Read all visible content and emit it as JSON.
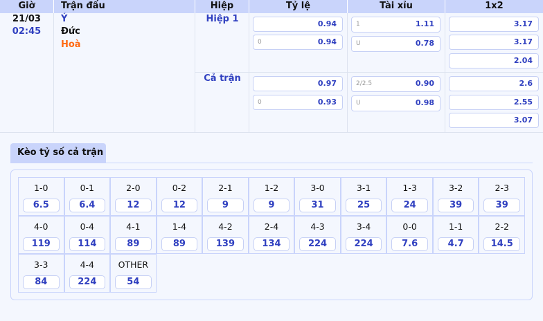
{
  "header": {
    "time": "Giờ",
    "match": "Trận đấu",
    "half": "Hiệp",
    "handicap": "Tỷ lệ",
    "overunder": "Tài xỉu",
    "onextwo": "1x2"
  },
  "match": {
    "date": "21/03",
    "time": "02:45",
    "home": "Ý",
    "away": "Đức",
    "draw": "Hoà"
  },
  "periods": [
    {
      "name": "Hiệp 1",
      "handicap": [
        {
          "line": "",
          "odd": "0.94"
        },
        {
          "line": "0",
          "odd": "0.94"
        }
      ],
      "overunder": [
        {
          "line": "1",
          "odd": "1.11"
        },
        {
          "line": "U",
          "odd": "0.78"
        }
      ],
      "onextwo": [
        "3.17",
        "3.17",
        "2.04"
      ]
    },
    {
      "name": "Cả trận",
      "handicap": [
        {
          "line": "",
          "odd": "0.97"
        },
        {
          "line": "0",
          "odd": "0.93"
        }
      ],
      "overunder": [
        {
          "line": "2/2.5",
          "odd": "0.90"
        },
        {
          "line": "U",
          "odd": "0.98"
        }
      ],
      "onextwo": [
        "2.6",
        "2.55",
        "3.07"
      ]
    }
  ],
  "correct_score": {
    "tab": "Kèo tỷ số cả trận",
    "items": [
      {
        "s": "1-0",
        "o": "6.5"
      },
      {
        "s": "0-1",
        "o": "6.4"
      },
      {
        "s": "2-0",
        "o": "12"
      },
      {
        "s": "0-2",
        "o": "12"
      },
      {
        "s": "2-1",
        "o": "9"
      },
      {
        "s": "1-2",
        "o": "9"
      },
      {
        "s": "3-0",
        "o": "31"
      },
      {
        "s": "3-1",
        "o": "25"
      },
      {
        "s": "1-3",
        "o": "24"
      },
      {
        "s": "3-2",
        "o": "39"
      },
      {
        "s": "2-3",
        "o": "39"
      },
      {
        "s": "4-0",
        "o": "119"
      },
      {
        "s": "0-4",
        "o": "114"
      },
      {
        "s": "4-1",
        "o": "89"
      },
      {
        "s": "1-4",
        "o": "89"
      },
      {
        "s": "4-2",
        "o": "139"
      },
      {
        "s": "2-4",
        "o": "134"
      },
      {
        "s": "4-3",
        "o": "224"
      },
      {
        "s": "3-4",
        "o": "224"
      },
      {
        "s": "0-0",
        "o": "7.6"
      },
      {
        "s": "1-1",
        "o": "4.7"
      },
      {
        "s": "2-2",
        "o": "14.5"
      },
      {
        "s": "3-3",
        "o": "84"
      },
      {
        "s": "4-4",
        "o": "224"
      },
      {
        "s": "OTHER",
        "o": "54"
      }
    ]
  }
}
